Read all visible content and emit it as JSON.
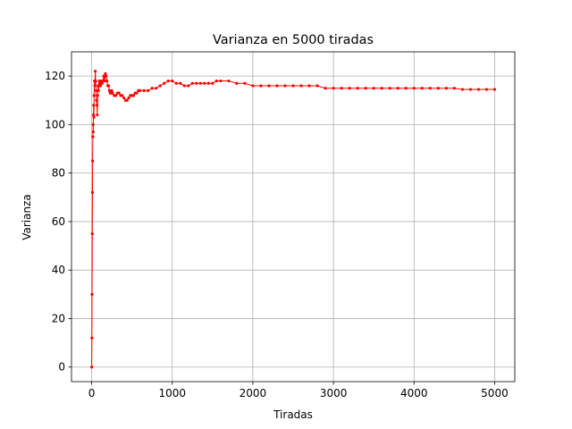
{
  "chart_data": {
    "type": "line",
    "title": "Varianza en 5000 tiradas",
    "xlabel": "Tiradas",
    "ylabel": "Varianza",
    "xlim": [
      -250,
      5250
    ],
    "ylim": [
      -6,
      130
    ],
    "xticks": [
      0,
      1000,
      2000,
      3000,
      4000,
      5000
    ],
    "xtick_labels": [
      "0",
      "1000",
      "2000",
      "3000",
      "4000",
      "5000"
    ],
    "yticks": [
      0,
      20,
      40,
      60,
      80,
      100,
      120
    ],
    "ytick_labels": [
      "0",
      "20",
      "40",
      "60",
      "80",
      "100",
      "120"
    ],
    "grid": true,
    "legend": "none",
    "series_color": "#ff0000",
    "grid_color": "#b0b0b0",
    "series": [
      {
        "x": [
          1,
          3,
          5,
          8,
          10,
          12,
          15,
          18,
          20,
          22,
          25,
          28,
          30,
          35,
          40,
          45,
          50,
          55,
          60,
          65,
          70,
          75,
          80,
          85,
          90,
          95,
          100,
          110,
          120,
          130,
          140,
          150,
          160,
          170,
          180,
          190,
          200,
          210,
          220,
          230,
          240,
          250,
          260,
          280,
          300,
          320,
          340,
          360,
          380,
          400,
          420,
          440,
          460,
          480,
          500,
          520,
          540,
          560,
          580,
          600,
          650,
          700,
          750,
          800,
          850,
          900,
          950,
          1000,
          1050,
          1100,
          1150,
          1200,
          1250,
          1300,
          1350,
          1400,
          1450,
          1500,
          1550,
          1600,
          1700,
          1800,
          1900,
          2000,
          2100,
          2200,
          2300,
          2400,
          2500,
          2600,
          2700,
          2800,
          2900,
          3000,
          3100,
          3200,
          3300,
          3400,
          3500,
          3600,
          3700,
          3800,
          3900,
          4000,
          4100,
          4200,
          4300,
          4400,
          4500,
          4600,
          4700,
          4800,
          4900,
          5000
        ],
        "y": [
          0,
          12,
          30,
          55,
          72,
          85,
          95,
          100,
          97,
          104,
          108,
          103,
          112,
          118,
          116,
          122,
          118,
          114,
          110,
          108,
          104,
          112,
          116,
          114,
          116,
          118,
          117,
          116,
          118,
          117,
          118,
          120,
          118,
          121,
          120,
          118,
          116,
          116,
          114,
          113,
          113,
          114,
          113,
          112,
          112,
          113,
          113,
          112,
          112,
          111,
          110,
          110,
          111,
          112,
          112,
          112,
          113,
          113,
          114,
          114,
          114,
          114,
          115,
          115,
          116,
          117,
          118,
          118,
          117,
          117,
          116,
          116,
          117,
          117,
          117,
          117,
          117,
          117,
          118,
          118,
          118,
          117,
          117,
          116,
          116,
          116,
          116,
          116,
          116,
          116,
          116,
          116,
          115,
          115,
          115,
          115,
          115,
          115,
          115,
          115,
          115,
          115,
          115,
          115,
          115,
          115,
          115,
          115,
          115,
          114.5,
          114.5,
          114.5,
          114.5,
          114.5
        ]
      }
    ]
  }
}
